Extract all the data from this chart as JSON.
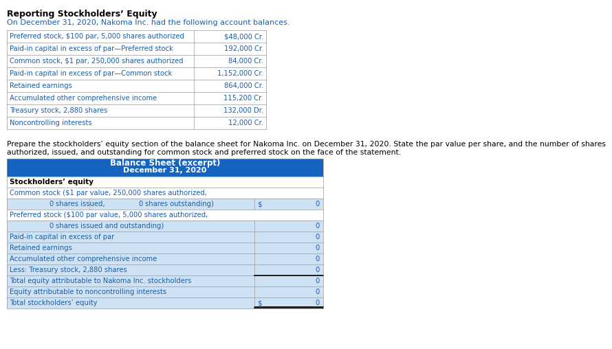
{
  "title": "Reporting Stockholders’ Equity",
  "subtitle": "On December 31, 2020, Nakoma Inc. had the following account balances.",
  "top_table_rows": [
    [
      "Preferred stock, $100 par, 5,000 shares authorized",
      "$48,000 Cr."
    ],
    [
      "Paid-in capital in excess of par—Preferred stock",
      "192,000 Cr."
    ],
    [
      "Common stock, $1 par, 250,000 shares authorized",
      "84,000 Cr."
    ],
    [
      "Paid-in capital in excess of par—Common stock",
      "1,152,000 Cr."
    ],
    [
      "Retained earnings",
      "864,000 Cr."
    ],
    [
      "Accumulated other comprehensive income",
      "115,200 Cr."
    ],
    [
      "Treasury stock, 2,880 shares",
      "132,000 Dr."
    ],
    [
      "Noncontrolling interests",
      "12,000 Cr."
    ]
  ],
  "instruction_line1": "Prepare the stockholders’ equity section of the balance sheet for Nakoma Inc. on December 31, 2020. State the par value per share, and the number of shares",
  "instruction_line2": "authorized, issued, and outstanding for common stock and preferred stock on the face of the statement.",
  "bs_header1": "Balance Sheet (excerpt)",
  "bs_header2": "December 31, 2020",
  "header_bg": "#1565c0",
  "header_fg": "#ffffff",
  "row_bg_blue": "#cfe2f3",
  "row_bg_white": "#ffffff",
  "border_color": "#999999",
  "text_blue": "#1a5ea8",
  "text_black": "#000000",
  "bs_rows": [
    {
      "type": "section",
      "label": "Stockholders’ equity"
    },
    {
      "type": "label",
      "label": "Common stock ($1 par value, 250,000 shares authorized,"
    },
    {
      "type": "common_input",
      "v1": "0",
      "t1": "shares issued,",
      "v2": "0",
      "t2": "shares outstanding)",
      "dollar": "$",
      "val": "0"
    },
    {
      "type": "label",
      "label": "Preferred stock ($100 par value, 5,000 shares authorized,"
    },
    {
      "type": "preferred_input",
      "v1": "0",
      "t1": "shares issued and outstanding)",
      "val": "0"
    },
    {
      "type": "data",
      "label": "Paid-in capital in excess of par",
      "val": "0"
    },
    {
      "type": "data",
      "label": "Retained earnings",
      "val": "0"
    },
    {
      "type": "data",
      "label": "Accumulated other comprehensive income",
      "val": "0"
    },
    {
      "type": "data",
      "label": "Less: Treasury stock, 2,880 shares",
      "val": "0"
    },
    {
      "type": "total1",
      "label": "Total equity attributable to Nakoma Inc. stockholders",
      "val": "0"
    },
    {
      "type": "data",
      "label": "Equity attributable to noncontrolling interests",
      "val": "0"
    },
    {
      "type": "total_final",
      "label": "Total stockholders’ equity",
      "dollar": "$",
      "val": "0"
    }
  ]
}
